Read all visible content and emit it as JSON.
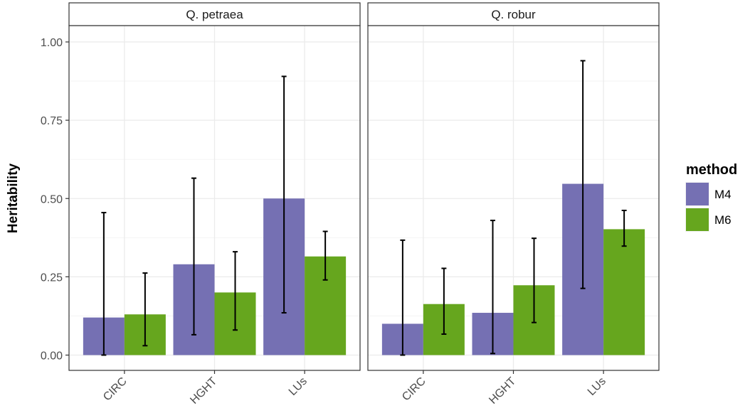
{
  "chart_data": {
    "type": "bar",
    "ylabel": "Heritability",
    "ylim": [
      0,
      1.05
    ],
    "yticks": [
      0,
      0.25,
      0.5,
      0.75,
      1.0
    ],
    "ytick_labels": [
      "0.00",
      "0.25",
      "0.50",
      "0.75",
      "1.00"
    ],
    "categories": [
      "CIRC",
      "HGHT",
      "LUs"
    ],
    "grid": true,
    "legend": {
      "title": "method",
      "position": "right",
      "entries": [
        {
          "name": "M4",
          "color": "#7570b3"
        },
        {
          "name": "M6",
          "color": "#66a61e"
        }
      ]
    },
    "facets": [
      {
        "label": "Q. petraea",
        "series": [
          {
            "name": "M4",
            "values": [
              0.12,
              0.29,
              0.5
            ],
            "err_low": [
              0.0,
              0.065,
              0.135
            ],
            "err_high": [
              0.455,
              0.565,
              0.89
            ]
          },
          {
            "name": "M6",
            "values": [
              0.13,
              0.2,
              0.315
            ],
            "err_low": [
              0.03,
              0.08,
              0.24
            ],
            "err_high": [
              0.262,
              0.33,
              0.395
            ]
          }
        ]
      },
      {
        "label": "Q. robur",
        "series": [
          {
            "name": "M4",
            "values": [
              0.1,
              0.135,
              0.547
            ],
            "err_low": [
              0.0,
              0.005,
              0.213
            ],
            "err_high": [
              0.367,
              0.43,
              0.94
            ]
          },
          {
            "name": "M6",
            "values": [
              0.163,
              0.223,
              0.402
            ],
            "err_low": [
              0.067,
              0.104,
              0.348
            ],
            "err_high": [
              0.277,
              0.373,
              0.462
            ]
          }
        ]
      }
    ]
  }
}
